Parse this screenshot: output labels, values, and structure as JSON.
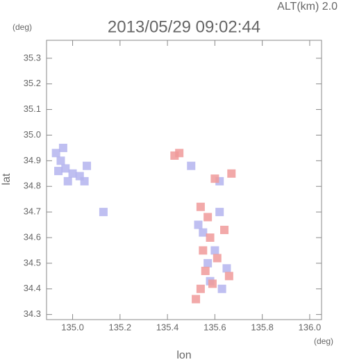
{
  "chart_data": {
    "type": "scatter",
    "title": "2013/05/29 09:02:44",
    "subtitle": "ALT(km) 2.0",
    "y_unit": "(deg)",
    "x_unit": "(deg)",
    "x_label": "lon",
    "y_label": "lat",
    "xlim": [
      134.89,
      136.05
    ],
    "ylim": [
      34.28,
      35.37
    ],
    "xticks": [
      {
        "value": 135,
        "label": "135.0"
      },
      135.2,
      135.4,
      135.6,
      135.8,
      {
        "value": 136,
        "label": "136.0"
      }
    ],
    "yticks": [
      34.3,
      34.4,
      34.5,
      34.6,
      34.7,
      34.8,
      34.9,
      {
        "value": 35,
        "label": "35.0"
      },
      35.1,
      35.2,
      35.3
    ],
    "series": [
      {
        "color": "#b4b4ee",
        "x": [
          134.93,
          134.95,
          134.97,
          135.0,
          135.03,
          135.06,
          134.94,
          134.98,
          135.05,
          134.96,
          135.13,
          135.55,
          135.6,
          135.62,
          135.65,
          135.58,
          135.53,
          135.63,
          135.57,
          135.62,
          135.5
        ],
        "y": [
          34.93,
          34.9,
          34.87,
          34.85,
          34.84,
          34.88,
          34.86,
          34.82,
          34.82,
          34.95,
          34.7,
          34.62,
          34.55,
          34.7,
          34.48,
          34.43,
          34.65,
          34.4,
          34.5,
          34.82,
          34.88
        ]
      },
      {
        "color": "#f09a9a",
        "x": [
          135.43,
          135.45,
          135.54,
          135.57,
          135.58,
          135.55,
          135.56,
          135.59,
          135.66,
          135.64,
          135.54,
          135.6,
          135.67,
          135.52,
          135.61
        ],
        "y": [
          34.92,
          34.93,
          34.72,
          34.68,
          34.6,
          34.55,
          34.47,
          34.42,
          34.45,
          34.63,
          34.4,
          34.83,
          34.85,
          34.36,
          34.52
        ]
      }
    ]
  }
}
